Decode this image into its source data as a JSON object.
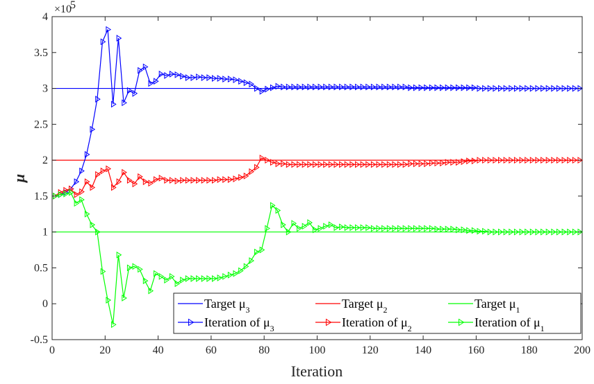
{
  "chart_data": {
    "type": "line",
    "xlabel": "Iteration",
    "ylabel": "μ",
    "y_multiplier_label": "×10",
    "y_multiplier_exponent": "5",
    "xlim": [
      0,
      200
    ],
    "ylim": [
      -0.5,
      4
    ],
    "x_ticks": [
      "0",
      "20",
      "40",
      "60",
      "80",
      "100",
      "120",
      "140",
      "160",
      "180",
      "200"
    ],
    "x_tick_values": [
      0,
      20,
      40,
      60,
      80,
      100,
      120,
      140,
      160,
      180,
      200
    ],
    "y_ticks": [
      "-0.5",
      "0",
      "0.5",
      "1",
      "1.5",
      "2",
      "2.5",
      "3",
      "3.5",
      "4"
    ],
    "y_tick_values": [
      -0.5,
      0,
      0.5,
      1,
      1.5,
      2,
      2.5,
      3,
      3.5,
      4
    ],
    "grid": false,
    "legend_position": "bottom-right",
    "colors": {
      "mu3": "#0000ff",
      "mu2": "#ff0000",
      "mu1": "#00ff00"
    },
    "targets": [
      {
        "name": "Target μ3",
        "label": "Target μ",
        "sub": "3",
        "value": 3.0,
        "color": "#0000ff"
      },
      {
        "name": "Target μ2",
        "label": "Target μ",
        "sub": "2",
        "value": 2.0,
        "color": "#ff0000"
      },
      {
        "name": "Target μ1",
        "label": "Target μ",
        "sub": "1",
        "value": 1.0,
        "color": "#00ff00"
      }
    ],
    "series": [
      {
        "name": "Iteration of μ3",
        "label": "Iteration of μ",
        "sub": "3",
        "color": "#0000ff",
        "marker": "triangle-right",
        "x": [
          1,
          3,
          5,
          7,
          9,
          11,
          13,
          15,
          17,
          19,
          21,
          23,
          25,
          27,
          29,
          31,
          33,
          35,
          37,
          39,
          41,
          43,
          45,
          47,
          49,
          51,
          53,
          55,
          57,
          59,
          61,
          63,
          65,
          67,
          69,
          71,
          73,
          75,
          77,
          79,
          81,
          83,
          85,
          87,
          89,
          91,
          93,
          95,
          97,
          99,
          101,
          103,
          105,
          107,
          109,
          111,
          113,
          115,
          117,
          119,
          121,
          123,
          125,
          127,
          129,
          131,
          133,
          135,
          137,
          139,
          141,
          143,
          145,
          147,
          149,
          151,
          153,
          155,
          157,
          159,
          161,
          163,
          165,
          167,
          169,
          171,
          173,
          175,
          177,
          179,
          181,
          183,
          185,
          187,
          189,
          191,
          193,
          195,
          197,
          199
        ],
        "y": [
          1.5,
          1.52,
          1.55,
          1.6,
          1.7,
          1.85,
          2.08,
          2.43,
          2.85,
          3.65,
          3.82,
          2.78,
          3.7,
          2.8,
          2.97,
          2.93,
          3.25,
          3.3,
          3.07,
          3.1,
          3.2,
          3.18,
          3.2,
          3.19,
          3.17,
          3.15,
          3.15,
          3.16,
          3.15,
          3.15,
          3.14,
          3.14,
          3.13,
          3.13,
          3.12,
          3.1,
          3.08,
          3.06,
          3.0,
          2.96,
          2.99,
          3.01,
          3.03,
          3.02,
          3.02,
          3.02,
          3.02,
          3.02,
          3.02,
          3.02,
          3.02,
          3.02,
          3.02,
          3.02,
          3.02,
          3.02,
          3.02,
          3.02,
          3.02,
          3.02,
          3.02,
          3.02,
          3.02,
          3.02,
          3.02,
          3.02,
          3.02,
          3.01,
          3.01,
          3.01,
          3.01,
          3.01,
          3.01,
          3.01,
          3.01,
          3.01,
          3.01,
          3.01,
          3.01,
          3.01,
          3.0,
          3.0,
          3.0,
          3.0,
          3.0,
          3.0,
          3.0,
          3.0,
          3.0,
          3.0,
          3.0,
          3.0,
          3.0,
          3.0,
          3.0,
          3.0,
          3.0,
          3.0,
          3.0,
          3.0
        ]
      },
      {
        "name": "Iteration of μ2",
        "label": "Iteration of μ",
        "sub": "2",
        "color": "#ff0000",
        "marker": "triangle-right",
        "x": [
          1,
          3,
          5,
          7,
          9,
          11,
          13,
          15,
          17,
          19,
          21,
          23,
          25,
          27,
          29,
          31,
          33,
          35,
          37,
          39,
          41,
          43,
          45,
          47,
          49,
          51,
          53,
          55,
          57,
          59,
          61,
          63,
          65,
          67,
          69,
          71,
          73,
          75,
          77,
          79,
          81,
          83,
          85,
          87,
          89,
          91,
          93,
          95,
          97,
          99,
          101,
          103,
          105,
          107,
          109,
          111,
          113,
          115,
          117,
          119,
          121,
          123,
          125,
          127,
          129,
          131,
          133,
          135,
          137,
          139,
          141,
          143,
          145,
          147,
          149,
          151,
          153,
          155,
          157,
          159,
          161,
          163,
          165,
          167,
          169,
          171,
          173,
          175,
          177,
          179,
          181,
          183,
          185,
          187,
          189,
          191,
          193,
          195,
          197,
          199
        ],
        "y": [
          1.5,
          1.55,
          1.58,
          1.6,
          1.52,
          1.56,
          1.7,
          1.62,
          1.8,
          1.85,
          1.88,
          1.62,
          1.7,
          1.83,
          1.72,
          1.67,
          1.77,
          1.7,
          1.68,
          1.73,
          1.75,
          1.72,
          1.72,
          1.71,
          1.72,
          1.72,
          1.72,
          1.72,
          1.72,
          1.72,
          1.72,
          1.73,
          1.73,
          1.73,
          1.74,
          1.76,
          1.78,
          1.84,
          1.9,
          2.03,
          2.0,
          1.97,
          1.95,
          1.95,
          1.94,
          1.94,
          1.94,
          1.94,
          1.94,
          1.94,
          1.94,
          1.94,
          1.94,
          1.94,
          1.94,
          1.94,
          1.94,
          1.94,
          1.94,
          1.94,
          1.94,
          1.94,
          1.94,
          1.94,
          1.94,
          1.94,
          1.94,
          1.95,
          1.95,
          1.95,
          1.95,
          1.96,
          1.96,
          1.96,
          1.97,
          1.97,
          1.97,
          1.98,
          1.99,
          1.99,
          2.0,
          2.0,
          2.0,
          2.0,
          2.0,
          2.0,
          2.0,
          2.0,
          2.0,
          2.0,
          2.0,
          2.0,
          2.0,
          2.0,
          2.0,
          2.0,
          2.0,
          2.0,
          2.0,
          2.0
        ]
      },
      {
        "name": "Iteration of μ1",
        "label": "Iteration of μ",
        "sub": "1",
        "color": "#00ff00",
        "marker": "triangle-right",
        "x": [
          1,
          3,
          5,
          7,
          9,
          11,
          13,
          15,
          17,
          19,
          21,
          23,
          25,
          27,
          29,
          31,
          33,
          35,
          37,
          39,
          41,
          43,
          45,
          47,
          49,
          51,
          53,
          55,
          57,
          59,
          61,
          63,
          65,
          67,
          69,
          71,
          73,
          75,
          77,
          79,
          81,
          83,
          85,
          87,
          89,
          91,
          93,
          95,
          97,
          99,
          101,
          103,
          105,
          107,
          109,
          111,
          113,
          115,
          117,
          119,
          121,
          123,
          125,
          127,
          129,
          131,
          133,
          135,
          137,
          139,
          141,
          143,
          145,
          147,
          149,
          151,
          153,
          155,
          157,
          159,
          161,
          163,
          165,
          167,
          169,
          171,
          173,
          175,
          177,
          179,
          181,
          183,
          185,
          187,
          189,
          191,
          193,
          195,
          197,
          199
        ],
        "y": [
          1.5,
          1.52,
          1.53,
          1.55,
          1.4,
          1.45,
          1.25,
          1.1,
          1.0,
          0.45,
          0.05,
          -0.29,
          0.68,
          0.08,
          0.5,
          0.52,
          0.48,
          0.32,
          0.18,
          0.42,
          0.38,
          0.33,
          0.38,
          0.28,
          0.33,
          0.35,
          0.35,
          0.35,
          0.35,
          0.35,
          0.35,
          0.36,
          0.38,
          0.4,
          0.42,
          0.46,
          0.52,
          0.6,
          0.72,
          0.75,
          1.05,
          1.37,
          1.3,
          1.1,
          1.0,
          1.12,
          1.05,
          1.08,
          1.13,
          1.03,
          1.05,
          1.08,
          1.1,
          1.06,
          1.07,
          1.06,
          1.06,
          1.06,
          1.06,
          1.06,
          1.05,
          1.05,
          1.05,
          1.05,
          1.05,
          1.05,
          1.05,
          1.05,
          1.05,
          1.05,
          1.05,
          1.05,
          1.04,
          1.04,
          1.04,
          1.04,
          1.03,
          1.03,
          1.02,
          1.02,
          1.01,
          1.01,
          1.0,
          1.0,
          1.0,
          1.0,
          1.0,
          1.0,
          1.0,
          1.0,
          1.0,
          1.0,
          1.0,
          1.0,
          1.0,
          1.0,
          1.0,
          1.0,
          1.0,
          1.0
        ]
      }
    ]
  }
}
